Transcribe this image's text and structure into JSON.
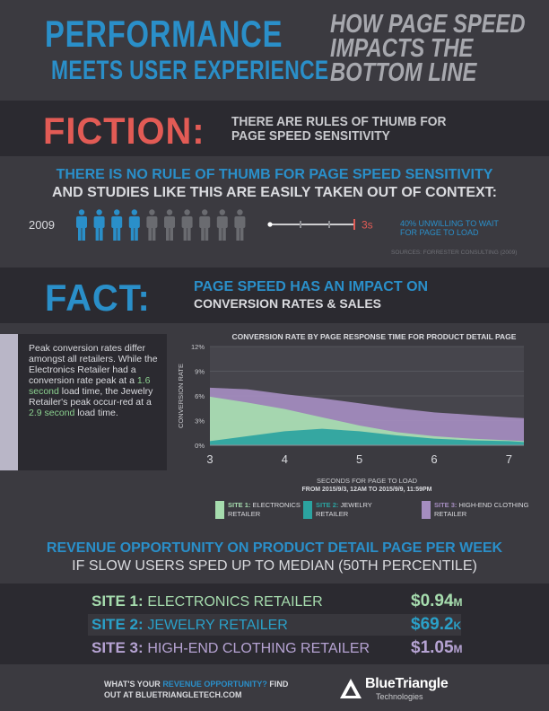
{
  "header": {
    "title_line1": "PERFORMANCE",
    "title_line2": "MEETS USER EXPERIENCE",
    "subtitle_line1": "HOW PAGE SPEED",
    "subtitle_line2": "IMPACTS THE",
    "subtitle_line3": "BOTTOM LINE"
  },
  "fiction": {
    "word": "FICTION:",
    "text_line1": "THERE ARE RULES OF THUMB FOR",
    "text_line2": "PAGE SPEED SENSITIVITY"
  },
  "rule": {
    "heading_line1": "THERE IS NO RULE OF THUMB FOR PAGE SPEED SENSITIVITY",
    "heading_line2": "AND STUDIES LIKE THIS ARE EASILY TAKEN OUT OF CONTEXT:",
    "year": "2009",
    "people_total": 10,
    "people_highlighted": 4,
    "timeline_label": "3s",
    "unwilling_line1": "40% UNWILLING TO WAIT",
    "unwilling_line2": "FOR PAGE TO LOAD",
    "sources": "SOURCES: FORRESTER CONSULTING (2009)"
  },
  "fact": {
    "word": "FACT:",
    "text_line1": "PAGE SPEED HAS AN IMPACT ON",
    "text_line2": "CONVERSION RATES & SALES"
  },
  "note": {
    "part1": "Peak conversion rates differ amongst all retailers. While the Electronics Retailer had a conversion rate peak at a ",
    "highlight1": "1.6 second",
    "part2": " load time, the Jewelry Retailer's peak occur-red at a ",
    "highlight2": "2.9 second",
    "part3": " load time."
  },
  "chart_data": {
    "type": "area",
    "title": "CONVERSION RATE BY PAGE RESPONSE TIME FOR PRODUCT DETAIL PAGE",
    "xlabel": "SECONDS FOR PAGE TO LOAD",
    "xlabel_sub": "FROM 2015/9/3, 12AM TO 2015/9/9, 11:59PM",
    "ylabel": "CONVERSION RATE",
    "xlim": [
      3,
      7.2
    ],
    "ylim": [
      0,
      12
    ],
    "x_ticks": [
      "3",
      "4",
      "5",
      "6",
      "7"
    ],
    "y_ticks": [
      "12%",
      "9%",
      "6%",
      "3%",
      "0%"
    ],
    "y_tick_values": [
      12,
      9,
      6,
      3,
      0
    ],
    "x_tick_values": [
      3,
      4,
      5,
      6,
      7
    ],
    "x": [
      3.0,
      3.5,
      4.0,
      4.5,
      5.0,
      5.5,
      6.0,
      6.5,
      7.0,
      7.2
    ],
    "series": [
      {
        "name": "HIGH-END CLOTHING RETAILER",
        "site": "SITE 3:",
        "color": "#a58dc0",
        "values": [
          7.0,
          6.8,
          6.2,
          5.7,
          5.1,
          4.5,
          4.0,
          3.7,
          3.4,
          3.3
        ]
      },
      {
        "name": "ELECTRONICS RETAILER",
        "site": "SITE 1:",
        "color": "#a6dcae",
        "values": [
          5.9,
          5.2,
          4.4,
          3.4,
          2.4,
          1.6,
          1.1,
          0.8,
          0.6,
          0.5
        ]
      },
      {
        "name": "JEWELRY RETAILER",
        "site": "SITE 2:",
        "color": "#2ba3a0",
        "values": [
          0.5,
          1.1,
          1.7,
          2.0,
          1.7,
          1.2,
          0.8,
          0.6,
          0.5,
          0.4
        ]
      }
    ],
    "legend_position": "bottom"
  },
  "revenue": {
    "heading_line1": "REVENUE OPPORTUNITY ON PRODUCT DETAIL PAGE PER WEEK",
    "heading_line2": "IF SLOW USERS SPED UP TO MEDIAN (50TH PERCENTILE)",
    "rows": [
      {
        "site": "SITE 1:",
        "name": "ELECTRONICS RETAILER",
        "value": "$0.94",
        "unit": "M",
        "color": "#a6dcae"
      },
      {
        "site": "SITE 2:",
        "name": "JEWELRY RETAILER",
        "value": "$69.2",
        "unit": "K",
        "color": "#2aa0c8"
      },
      {
        "site": "SITE 3:",
        "name": "HIGH-END CLOTHING RETAILER",
        "value": "$1.05",
        "unit": "M",
        "color": "#b6a3d3"
      }
    ]
  },
  "footer": {
    "cta_part1": "WHAT'S YOUR ",
    "cta_accent": "REVENUE OPPORTUNITY?",
    "cta_part2": " FIND",
    "cta_line2_prefix": "OUT AT ",
    "cta_url": "BLUETRIANGLETECH.COM",
    "logo_name": "BlueTriangle",
    "logo_sub": "Technologies"
  },
  "colors": {
    "accent_blue": "#2a8fc9",
    "fiction_red": "#e25b55",
    "dark_band": "#2b2a30",
    "background": "#3b3a40"
  }
}
